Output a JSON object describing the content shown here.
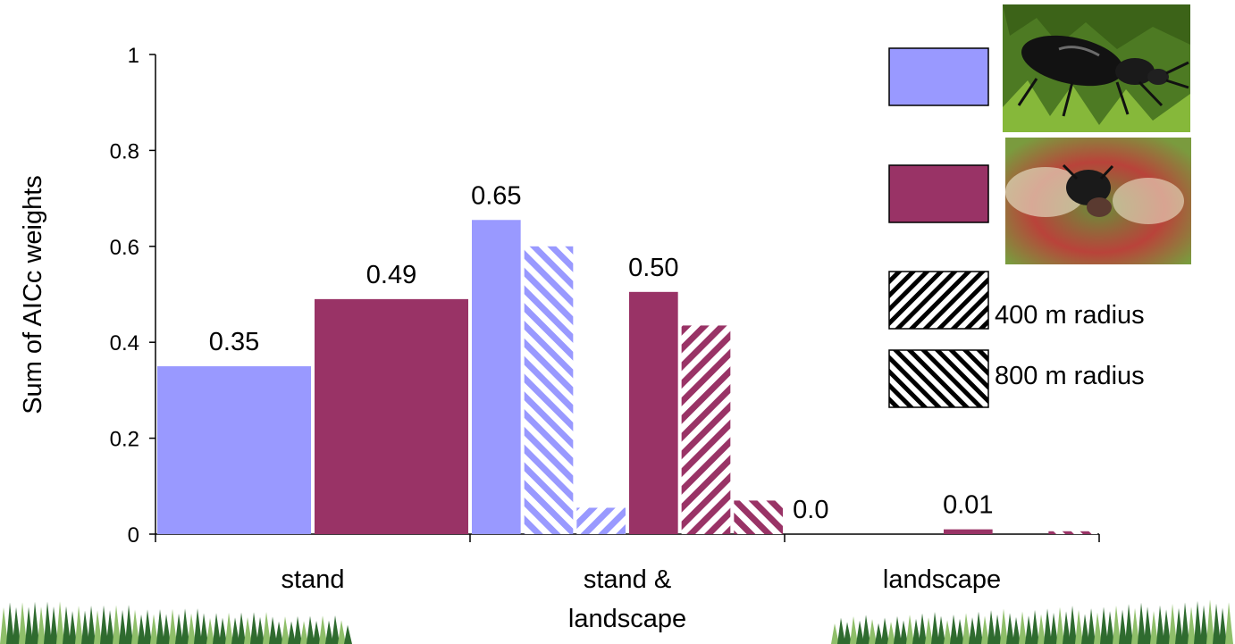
{
  "colors": {
    "series_a": "#9999ff",
    "series_b": "#993366",
    "pattern_fg": "#000000",
    "pattern_bg": "#ffffff",
    "forest_dark": "#2f6b2f",
    "forest_light": "#8fbf6a"
  },
  "legend": {
    "hatch_400_label": "400 m radius",
    "hatch_800_label": "800 m radius",
    "photo_a_icon": "ground-beetle-photo-icon",
    "photo_b_icon": "flying-beetle-photo-icon"
  },
  "decor": {
    "forest_icon": "forest-strip-icon"
  },
  "chart_data": {
    "type": "bar",
    "title": "",
    "ylabel": "Sum of AICc weights",
    "xlabel": "",
    "ylim": [
      0,
      1
    ],
    "yticks": [
      0,
      0.2,
      0.4,
      0.6,
      0.8,
      1
    ],
    "ytick_labels": [
      "0",
      "0.2",
      "0.4",
      "0.6",
      "0.8",
      "1"
    ],
    "categories": [
      "stand",
      "stand & landscape",
      "landscape"
    ],
    "category_labels": [
      [
        "stand"
      ],
      [
        "stand &",
        "landscape"
      ],
      [
        "landscape"
      ]
    ],
    "legend_position": "top-right",
    "grid": false,
    "bars": [
      {
        "category": 0,
        "series": 0,
        "pattern": "solid",
        "value": 0.35,
        "label": "0.35"
      },
      {
        "category": 0,
        "series": 1,
        "pattern": "solid",
        "value": 0.49,
        "label": "0.49"
      },
      {
        "category": 1,
        "series": 0,
        "pattern": "solid",
        "value": 0.655,
        "label": "0.65"
      },
      {
        "category": 1,
        "series": 0,
        "pattern": "hatch800",
        "value": 0.6,
        "label": ""
      },
      {
        "category": 1,
        "series": 0,
        "pattern": "hatch400",
        "value": 0.055,
        "label": ""
      },
      {
        "category": 1,
        "series": 1,
        "pattern": "solid",
        "value": 0.505,
        "label": "0.50"
      },
      {
        "category": 1,
        "series": 1,
        "pattern": "hatch400",
        "value": 0.435,
        "label": ""
      },
      {
        "category": 1,
        "series": 1,
        "pattern": "hatch800",
        "value": 0.07,
        "label": ""
      },
      {
        "category": 2,
        "series": 0,
        "pattern": "solid",
        "value": 0.0,
        "label": "0.0"
      },
      {
        "category": 2,
        "series": 1,
        "pattern": "solid",
        "value": 0.01,
        "label": "0.01"
      },
      {
        "category": 2,
        "series": 1,
        "pattern": "hatch800",
        "value": 0.006,
        "label": ""
      }
    ]
  }
}
